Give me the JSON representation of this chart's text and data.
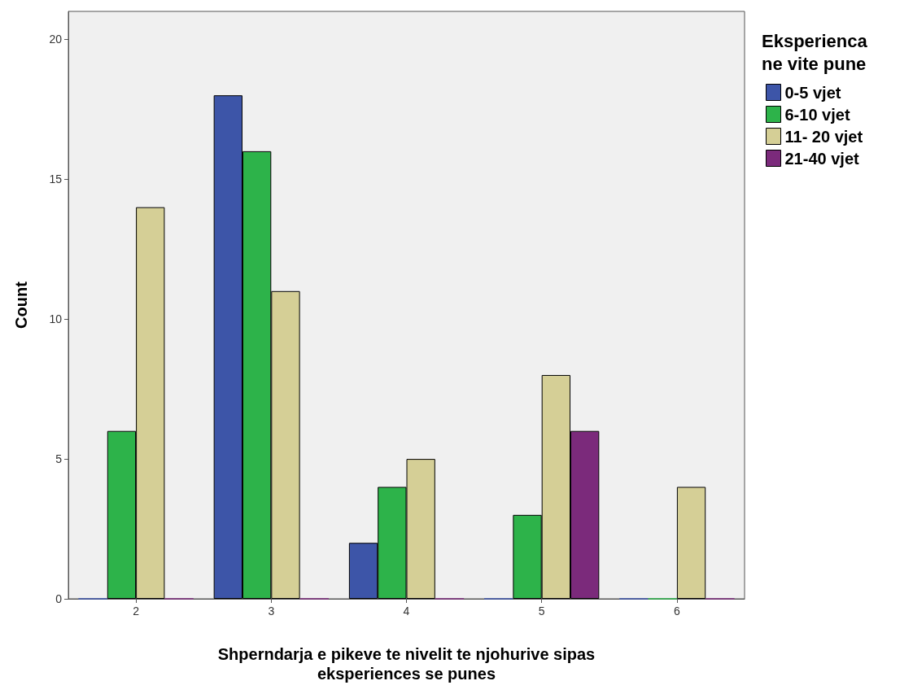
{
  "chart_data": {
    "type": "bar",
    "xlabel": "Shperndarja e pikeve te nivelit te njohurive sipas eksperiences se punes",
    "ylabel": "Count",
    "legend_title": "Eksperienca ne vite pune",
    "categories": [
      "2",
      "3",
      "4",
      "5",
      "6"
    ],
    "series": [
      {
        "name": "0-5 vjet",
        "color": "#3d55a8",
        "values": [
          0,
          18,
          2,
          0,
          0
        ]
      },
      {
        "name": "6-10 vjet",
        "color": "#2db34a",
        "values": [
          6,
          16,
          4,
          3,
          0
        ]
      },
      {
        "name": "11- 20 vjet",
        "color": "#d5cf96",
        "values": [
          14,
          11,
          5,
          8,
          4
        ]
      },
      {
        "name": "21-40 vjet",
        "color": "#7b2a7b",
        "values": [
          0,
          0,
          0,
          6,
          0
        ]
      }
    ],
    "ylim": [
      0,
      21
    ],
    "yticks": [
      0,
      5,
      10,
      15,
      20
    ],
    "grid": false,
    "legend": "top right"
  }
}
